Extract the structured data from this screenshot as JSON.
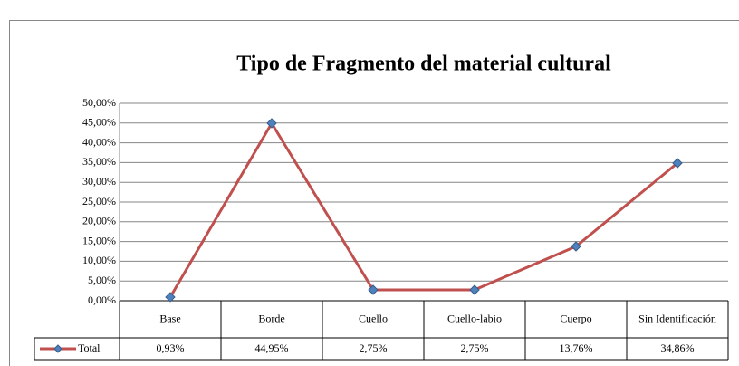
{
  "chart_data": {
    "type": "line",
    "title": "Tipo de Fragmento del material cultural",
    "categories": [
      "Base",
      "Borde",
      "Cuello",
      "Cuello-labio",
      "Cuerpo",
      "Sin Identificación"
    ],
    "series": [
      {
        "name": "Total",
        "color": "#c0504d",
        "marker_color": "#4f81bd",
        "values": [
          0.93,
          44.95,
          2.75,
          2.75,
          13.76,
          34.86
        ],
        "value_labels": [
          "0,93%",
          "44,95%",
          "2,75%",
          "2,75%",
          "13,76%",
          "34,86%"
        ]
      }
    ],
    "ylim": [
      0,
      50
    ],
    "yticks": [
      {
        "value": 0,
        "label": "0,00%"
      },
      {
        "value": 5,
        "label": "5,00%"
      },
      {
        "value": 10,
        "label": "10,00%"
      },
      {
        "value": 15,
        "label": "15,00%"
      },
      {
        "value": 20,
        "label": "20,00%"
      },
      {
        "value": 25,
        "label": "25,00%"
      },
      {
        "value": 30,
        "label": "30,00%"
      },
      {
        "value": 35,
        "label": "35,00%"
      },
      {
        "value": 40,
        "label": "40,00%"
      },
      {
        "value": 45,
        "label": "45,00%"
      },
      {
        "value": 50,
        "label": "50,00%"
      }
    ],
    "grid": true,
    "data_table": true
  }
}
